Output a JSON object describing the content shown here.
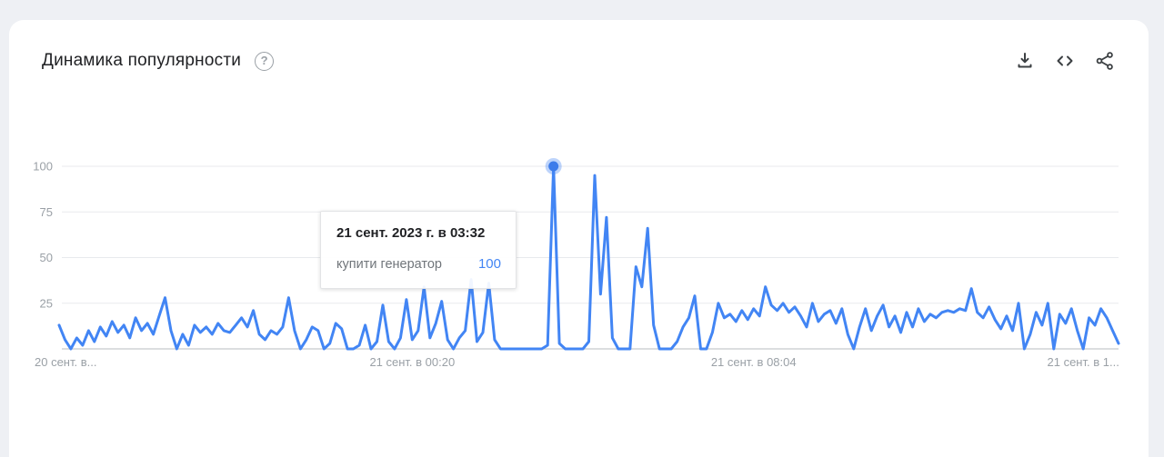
{
  "header": {
    "title": "Динамика популярности",
    "actions": {
      "download": "download",
      "embed": "embed-code",
      "share": "share"
    }
  },
  "tooltip": {
    "date": "21 сент. 2023 г. в 03:32",
    "term": "купити генератор",
    "value": "100"
  },
  "colors": {
    "line": "#4285f4",
    "marker": "#3d7cea",
    "grid": "#e8eaed",
    "axis": "#c7cacd",
    "tick_label": "#9aa0a6",
    "tooltip_value": "#4285f4"
  },
  "chart_data": {
    "type": "line",
    "title": "Динамика популярности",
    "xlabel": "",
    "ylabel": "",
    "ylim": [
      0,
      100
    ],
    "grid": true,
    "legend_position": "none",
    "y_ticks": [
      25,
      50,
      75,
      100
    ],
    "x_ticks": [
      {
        "label": "20 сент. в...",
        "index": 0,
        "align": "start"
      },
      {
        "label": "21 сент. в 00:20",
        "index": 60,
        "align": "middle"
      },
      {
        "label": "21 сент. в 08:04",
        "index": 118,
        "align": "middle"
      },
      {
        "label": "21 сент. в 1...",
        "index": 174,
        "align": "middle"
      }
    ],
    "highlight_index": 84,
    "highlight_value": 100,
    "series": [
      {
        "name": "купити генератор",
        "values": [
          13,
          5,
          0,
          6,
          2,
          10,
          4,
          12,
          7,
          15,
          9,
          13,
          6,
          17,
          10,
          14,
          8,
          18,
          28,
          10,
          0,
          8,
          2,
          13,
          9,
          12,
          8,
          14,
          10,
          9,
          13,
          17,
          12,
          21,
          8,
          5,
          10,
          8,
          12,
          28,
          10,
          0,
          5,
          12,
          10,
          0,
          3,
          14,
          11,
          0,
          0,
          2,
          13,
          0,
          4,
          24,
          4,
          0,
          6,
          27,
          5,
          10,
          34,
          6,
          14,
          26,
          5,
          0,
          6,
          10,
          38,
          4,
          9,
          36,
          5,
          0,
          0,
          0,
          0,
          0,
          0,
          0,
          0,
          2,
          100,
          3,
          0,
          0,
          0,
          0,
          4,
          95,
          30,
          72,
          6,
          0,
          0,
          0,
          45,
          34,
          66,
          13,
          0,
          0,
          0,
          4,
          12,
          17,
          29,
          0,
          0,
          9,
          25,
          17,
          19,
          15,
          21,
          16,
          22,
          18,
          34,
          24,
          21,
          25,
          20,
          23,
          18,
          12,
          25,
          15,
          19,
          21,
          14,
          22,
          8,
          0,
          12,
          22,
          10,
          18,
          24,
          12,
          18,
          9,
          20,
          12,
          22,
          15,
          19,
          17,
          20,
          21,
          20,
          22,
          21,
          33,
          20,
          17,
          23,
          16,
          11,
          18,
          10,
          25,
          0,
          8,
          20,
          13,
          25,
          0,
          19,
          14,
          22,
          10,
          0,
          17,
          13,
          22,
          17,
          10,
          3
        ]
      }
    ]
  }
}
